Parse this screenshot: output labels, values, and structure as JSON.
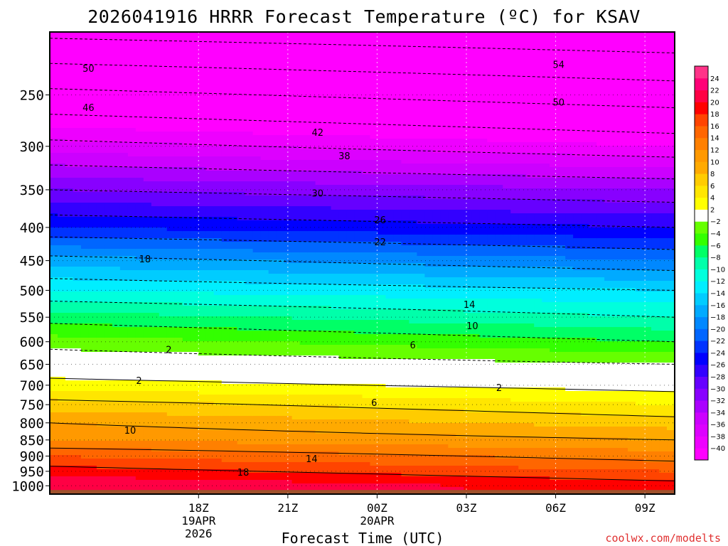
{
  "title": "2026041916 HRRR Forecast Temperature (ºC) for KSAV",
  "credit": "coolwx.com/modelts",
  "chart_data": {
    "type": "heatmap",
    "title": "2026041916 HRRR Forecast Temperature (ºC) for KSAV",
    "xlabel": "Forecast Time (UTC)",
    "ylabel": "",
    "x_range_hours": [
      -3,
      18
    ],
    "x_ticks": [
      {
        "hour": 2,
        "lines": [
          "18Z",
          "19APR",
          "2026"
        ]
      },
      {
        "hour": 5,
        "lines": [
          "21Z"
        ]
      },
      {
        "hour": 8,
        "lines": [
          "00Z",
          "20APR"
        ]
      },
      {
        "hour": 11,
        "lines": [
          "03Z"
        ]
      },
      {
        "hour": 14,
        "lines": [
          "06Z"
        ]
      },
      {
        "hour": 17,
        "lines": [
          "09Z"
        ]
      }
    ],
    "y_axis": {
      "scale": "log-pressure",
      "range_hPa": [
        1030,
        200
      ],
      "inverted": true
    },
    "y_ticks": [
      250,
      300,
      350,
      400,
      450,
      500,
      550,
      600,
      650,
      700,
      750,
      800,
      850,
      900,
      950,
      1000
    ],
    "grid": true,
    "colorbar": {
      "levels": [
        -40,
        -38,
        -36,
        -34,
        -32,
        -30,
        -28,
        -26,
        -24,
        -22,
        -20,
        -18,
        -16,
        -14,
        -12,
        -10,
        -8,
        -6,
        -4,
        -2,
        2,
        4,
        6,
        8,
        10,
        12,
        14,
        16,
        18,
        20,
        22,
        24
      ],
      "colors": [
        "#ff00ff",
        "#ee00ff",
        "#dd00ff",
        "#cc00ff",
        "#aa00ff",
        "#8800ff",
        "#6600ff",
        "#3300ff",
        "#0000ff",
        "#0033ff",
        "#0066ff",
        "#0088ff",
        "#00aaff",
        "#00ccff",
        "#00eeff",
        "#00ffdd",
        "#00ffaa",
        "#00ff66",
        "#33ff00",
        "#66ff00",
        "#ffffff",
        "#ffff00",
        "#ffe600",
        "#ffcc00",
        "#ffaa00",
        "#ff9900",
        "#ff8000",
        "#ff6600",
        "#ff4400",
        "#ff0000",
        "#ff0044",
        "#ff0077",
        "#ff3388"
      ]
    },
    "temperature_profile_start": [
      {
        "hPa": 1000,
        "T": 22
      },
      {
        "hPa": 950,
        "T": 19
      },
      {
        "hPa": 900,
        "T": 16
      },
      {
        "hPa": 850,
        "T": 12
      },
      {
        "hPa": 800,
        "T": 10
      },
      {
        "hPa": 750,
        "T": 7
      },
      {
        "hPa": 700,
        "T": 3
      },
      {
        "hPa": 650,
        "T": 0
      },
      {
        "hPa": 600,
        "T": -3
      },
      {
        "hPa": 550,
        "T": -7
      },
      {
        "hPa": 500,
        "T": -12
      },
      {
        "hPa": 450,
        "T": -17
      },
      {
        "hPa": 400,
        "T": -24
      },
      {
        "hPa": 350,
        "T": -30
      },
      {
        "hPa": 300,
        "T": -37
      },
      {
        "hPa": 250,
        "T": -45
      },
      {
        "hPa": 200,
        "T": -55
      }
    ],
    "temperature_profile_end": [
      {
        "hPa": 1000,
        "T": 19
      },
      {
        "hPa": 950,
        "T": 16
      },
      {
        "hPa": 900,
        "T": 13
      },
      {
        "hPa": 850,
        "T": 10
      },
      {
        "hPa": 800,
        "T": 7
      },
      {
        "hPa": 750,
        "T": 4
      },
      {
        "hPa": 700,
        "T": 1
      },
      {
        "hPa": 650,
        "T": -2
      },
      {
        "hPa": 600,
        "T": -6
      },
      {
        "hPa": 550,
        "T": -10
      },
      {
        "hPa": 500,
        "T": -14
      },
      {
        "hPa": 450,
        "T": -20
      },
      {
        "hPa": 400,
        "T": -26
      },
      {
        "hPa": 350,
        "T": -32
      },
      {
        "hPa": 300,
        "T": -40
      },
      {
        "hPa": 250,
        "T": -48
      },
      {
        "hPa": 200,
        "T": -57
      }
    ],
    "contour_labels": [
      {
        "text": "50",
        "hour": -1.7,
        "hPa": 228
      },
      {
        "text": "54",
        "hour": 14.1,
        "hPa": 225
      },
      {
        "text": "46",
        "hour": -1.7,
        "hPa": 262
      },
      {
        "text": "50",
        "hour": 14.1,
        "hPa": 257
      },
      {
        "text": "42",
        "hour": 6.0,
        "hPa": 286
      },
      {
        "text": "38",
        "hour": 6.9,
        "hPa": 311
      },
      {
        "text": "30",
        "hour": 6.0,
        "hPa": 355
      },
      {
        "text": "26",
        "hour": 8.1,
        "hPa": 390
      },
      {
        "text": "22",
        "hour": 8.1,
        "hPa": 422
      },
      {
        "text": "18",
        "hour": 0.2,
        "hPa": 448
      },
      {
        "text": "14",
        "hour": 11.1,
        "hPa": 527
      },
      {
        "text": "10",
        "hour": 11.2,
        "hPa": 568
      },
      {
        "text": "6",
        "hour": 9.2,
        "hPa": 608
      },
      {
        "text": "2",
        "hour": 1.0,
        "hPa": 618
      },
      {
        "text": "2",
        "hour": 0.0,
        "hPa": 690
      },
      {
        "text": "2",
        "hour": 12.1,
        "hPa": 707
      },
      {
        "text": "6",
        "hour": 7.9,
        "hPa": 746
      },
      {
        "text": "10",
        "hour": -0.3,
        "hPa": 823
      },
      {
        "text": "14",
        "hour": 5.8,
        "hPa": 910
      },
      {
        "text": "18",
        "hour": 3.5,
        "hPa": 955
      }
    ]
  }
}
